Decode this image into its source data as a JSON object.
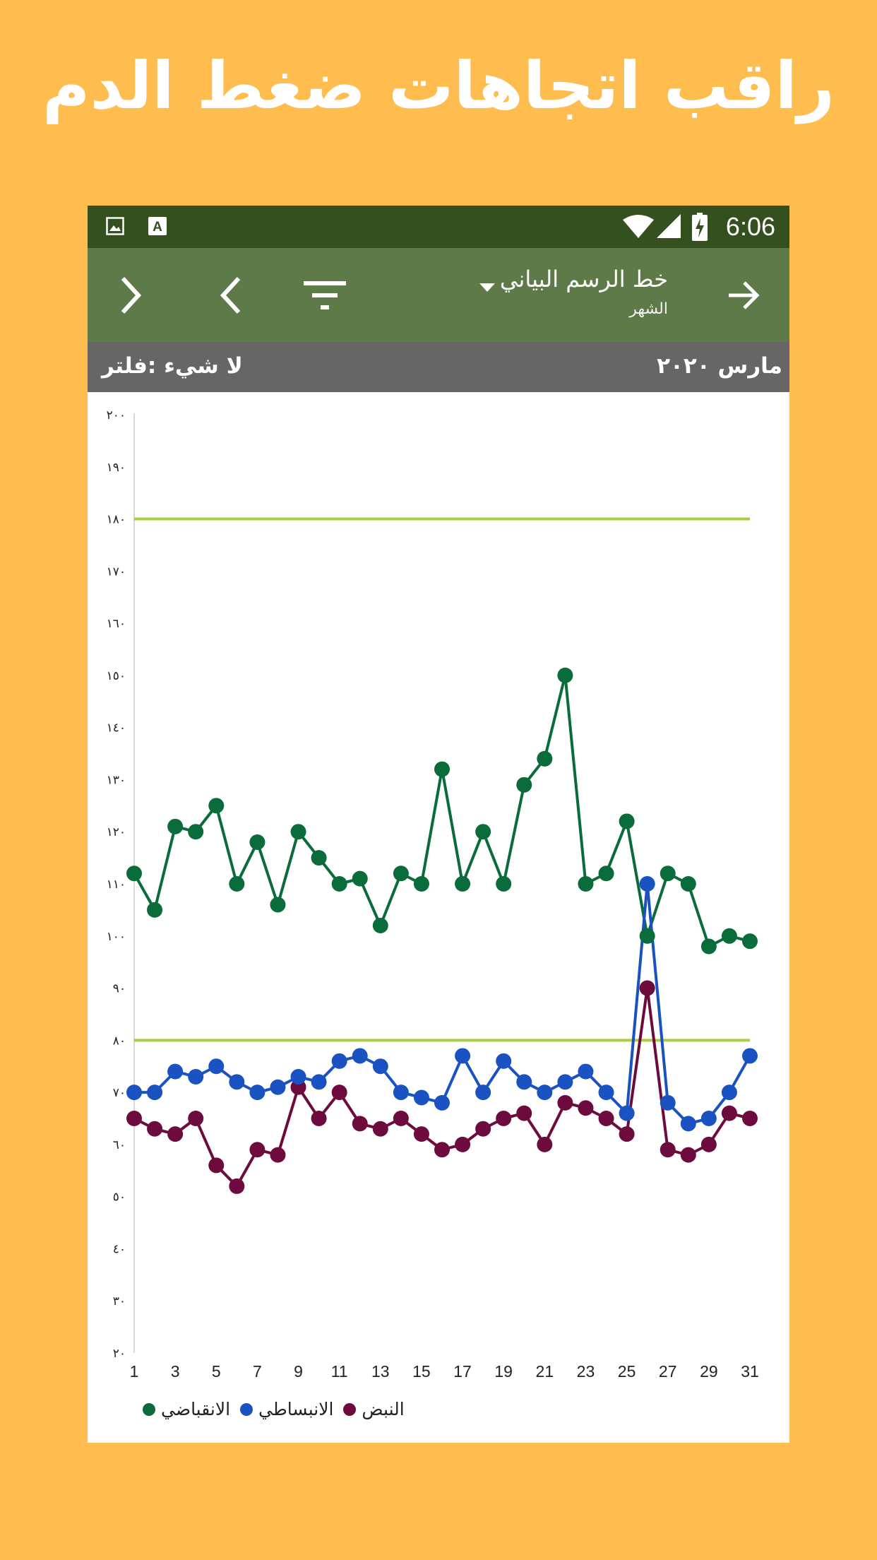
{
  "promo": {
    "title": "راقب اتجاهات ضغط الدم"
  },
  "statusbar": {
    "time": "6:06",
    "left_icons": [
      "image-icon",
      "a-text-icon"
    ],
    "right_icons": [
      "wifi-icon",
      "cell-signal-icon",
      "battery-charging-icon"
    ]
  },
  "appbar": {
    "title": "خط الرسم البياني",
    "subtitle": "الشهر",
    "icons": [
      "arrow-right-icon",
      "filter-icon",
      "chevron-left-icon",
      "chevron-right-icon"
    ]
  },
  "infobar": {
    "month": "مارس ٢٠٢٠",
    "filter": "لا شيء :فلتر"
  },
  "colors": {
    "background": "#FFBC4F",
    "appbar": "#5E7A48",
    "statusbar": "#35501F",
    "infobar": "#666666",
    "systolic": "#0A6B3B",
    "diastolic": "#1A52C1",
    "pulse": "#6E0B3E",
    "threshold": "#A8CF3C"
  },
  "chart_data": {
    "type": "line",
    "x": [
      1,
      2,
      3,
      4,
      5,
      6,
      7,
      8,
      9,
      10,
      11,
      12,
      13,
      14,
      15,
      16,
      17,
      18,
      19,
      20,
      21,
      22,
      23,
      24,
      25,
      26,
      27,
      28,
      29,
      30,
      31
    ],
    "xticks": [
      1,
      3,
      5,
      7,
      9,
      11,
      13,
      15,
      17,
      19,
      21,
      23,
      25,
      27,
      29,
      31
    ],
    "xtick_labels": [
      "1",
      "3",
      "5",
      "7",
      "9",
      "11",
      "13",
      "15",
      "17",
      "19",
      "21",
      "23",
      "25",
      "27",
      "29",
      "31"
    ],
    "yticks": [
      20,
      30,
      40,
      50,
      60,
      70,
      80,
      90,
      100,
      110,
      120,
      130,
      140,
      150,
      160,
      170,
      180,
      190,
      200
    ],
    "ytick_labels": [
      "٢٠",
      "٣٠",
      "٤٠",
      "٥٠",
      "٦٠",
      "٧٠",
      "٨٠",
      "٩٠",
      "١٠٠",
      "١١٠",
      "١٢٠",
      "١٣٠",
      "١٤٠",
      "١٥٠",
      "١٦٠",
      "١٧٠",
      "١٨٠",
      "١٩٠",
      "٢٠٠"
    ],
    "ylim": [
      20,
      200
    ],
    "xlim": [
      1,
      31
    ],
    "reference_lines": [
      180,
      80
    ],
    "legend_position": "bottom-left",
    "series": [
      {
        "name": "الانقباضي",
        "values": [
          112,
          105,
          121,
          120,
          125,
          110,
          118,
          106,
          120,
          115,
          110,
          111,
          102,
          112,
          110,
          132,
          110,
          120,
          110,
          129,
          134,
          150,
          110,
          112,
          122,
          100,
          112,
          110,
          98,
          100,
          99
        ]
      },
      {
        "name": "الانبساطي",
        "values": [
          70,
          70,
          74,
          73,
          75,
          72,
          70,
          71,
          73,
          72,
          76,
          77,
          75,
          70,
          69,
          68,
          77,
          70,
          76,
          72,
          70,
          72,
          74,
          70,
          66,
          110,
          68,
          64,
          65,
          70,
          77
        ]
      },
      {
        "name": "النبض",
        "values": [
          65,
          63,
          62,
          65,
          56,
          52,
          59,
          58,
          71,
          65,
          70,
          64,
          63,
          65,
          62,
          59,
          60,
          63,
          65,
          66,
          60,
          68,
          67,
          65,
          62,
          90,
          59,
          58,
          60,
          66,
          65
        ]
      }
    ]
  }
}
